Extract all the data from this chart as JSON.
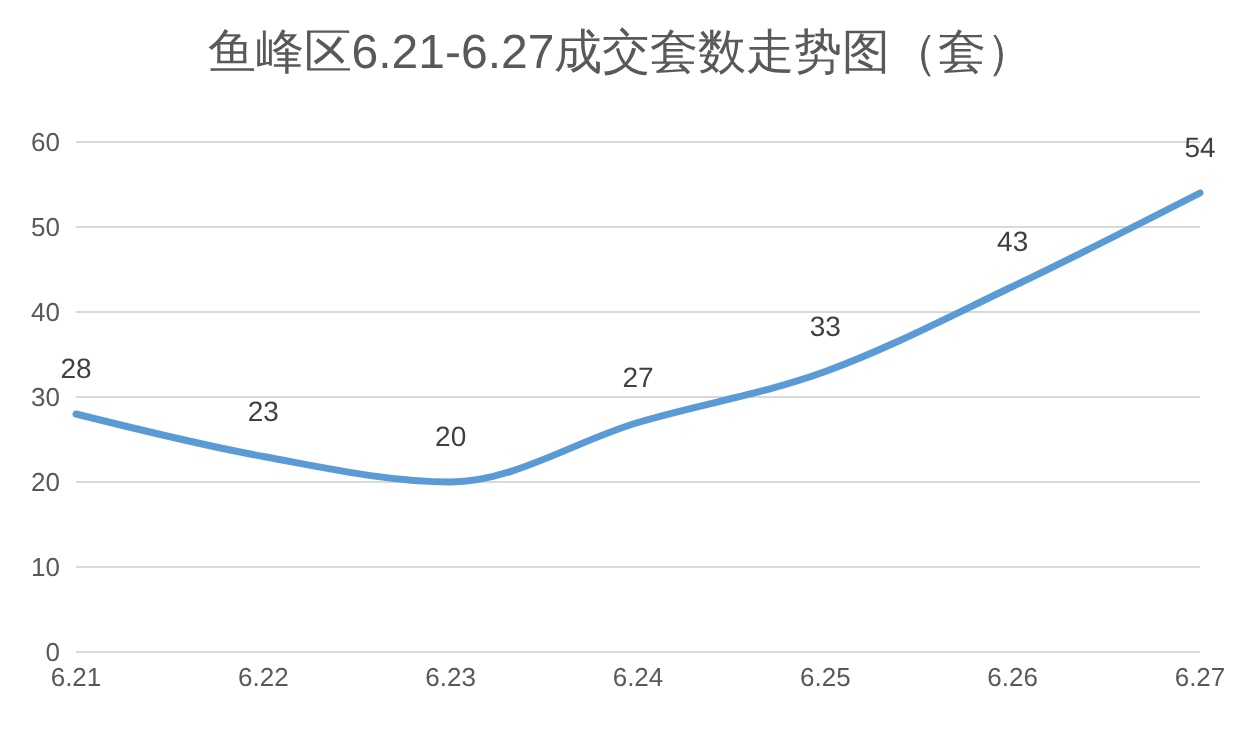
{
  "chart_data": {
    "type": "line",
    "title": "鱼峰区6.21-6.27成交套数走势图（套）",
    "categories": [
      "6.21",
      "6.22",
      "6.23",
      "6.24",
      "6.25",
      "6.26",
      "6.27"
    ],
    "values": [
      28,
      23,
      20,
      27,
      33,
      43,
      54
    ],
    "color": "#5b9bd5",
    "ylim": [
      0,
      60
    ],
    "yticks": [
      0,
      10,
      20,
      30,
      40,
      50,
      60
    ],
    "grid": "y",
    "data_labels": true,
    "marker": "none",
    "line_style": "solid"
  }
}
